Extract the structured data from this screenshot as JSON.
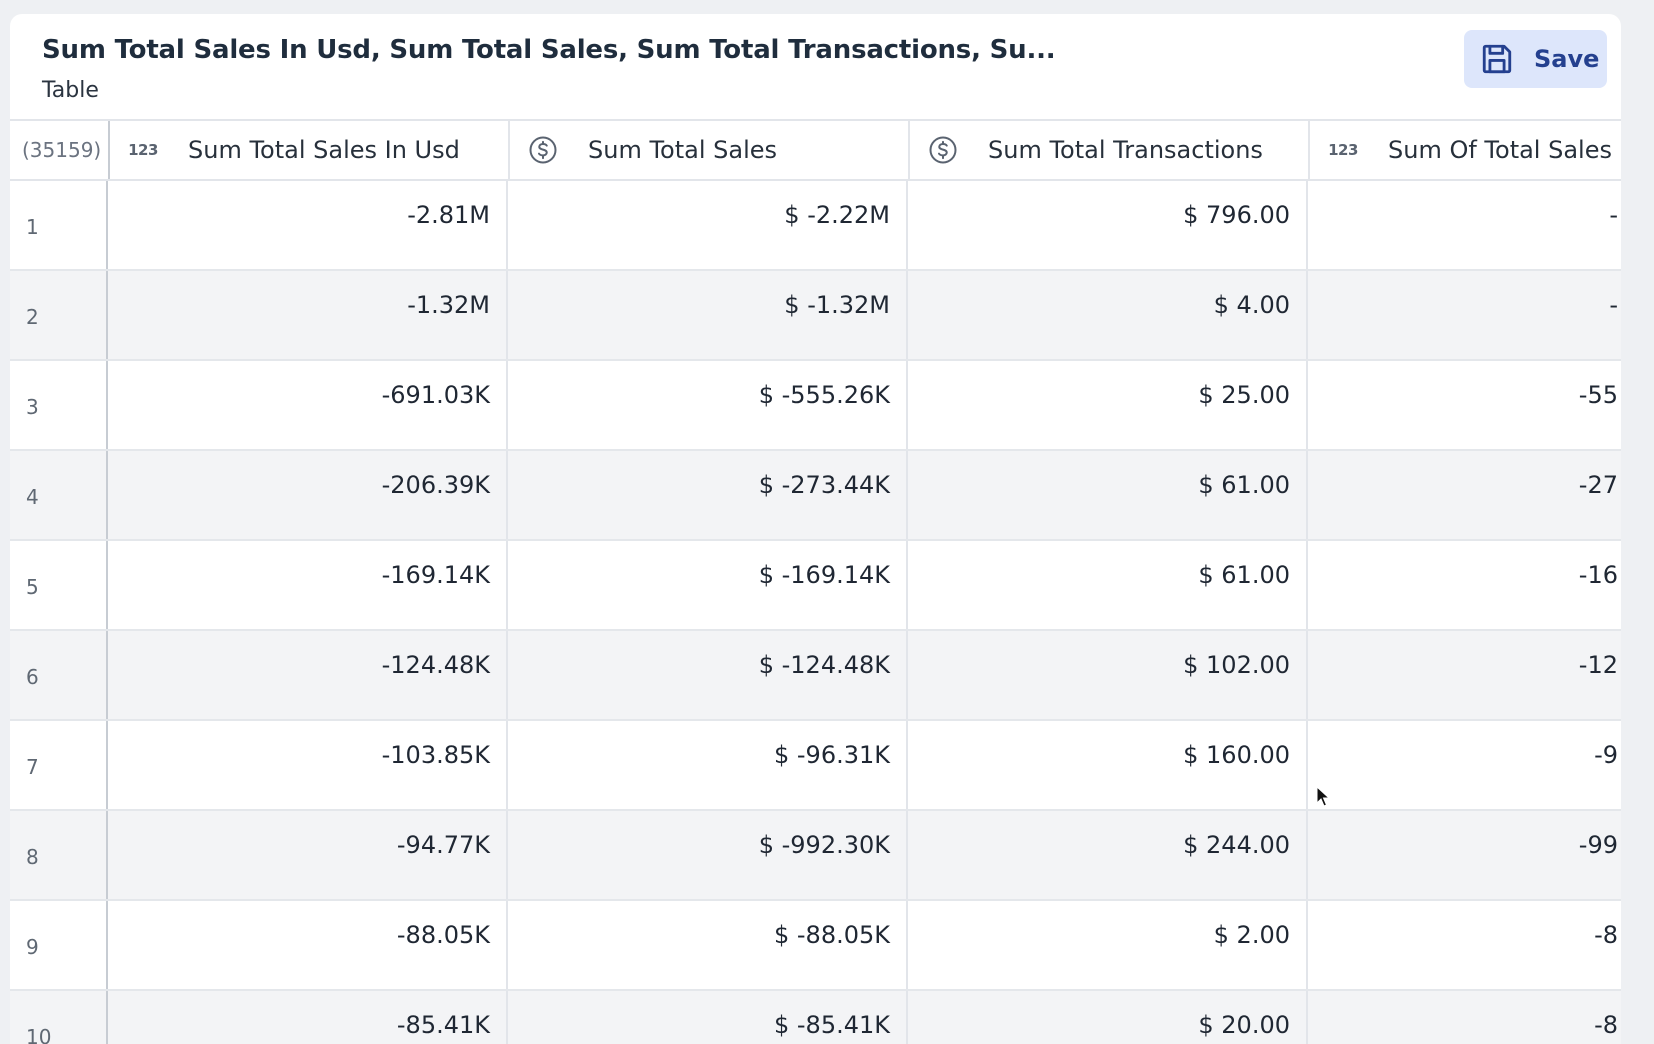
{
  "header": {
    "title": "Sum Total Sales In Usd, Sum Total Sales, Sum Total Transactions, Su...",
    "subtitle": "Table",
    "save_label": "Save"
  },
  "table": {
    "row_count_label": "(35159)",
    "columns": [
      {
        "label": "Sum Total Sales In Usd",
        "type_icon": "number-type-icon",
        "type_text": "123"
      },
      {
        "label": "Sum Total Sales",
        "type_icon": "currency-dollar-icon"
      },
      {
        "label": "Sum Total Transactions",
        "type_icon": "currency-dollar-icon"
      },
      {
        "label": "Sum Of Total Sales",
        "type_icon": "number-type-icon",
        "type_text": "123"
      }
    ],
    "rows": [
      {
        "n": "1",
        "cells": [
          "-2.81M",
          "$ -2.22M",
          "$ 796.00",
          "-"
        ]
      },
      {
        "n": "2",
        "cells": [
          "-1.32M",
          "$ -1.32M",
          "$ 4.00",
          "-"
        ]
      },
      {
        "n": "3",
        "cells": [
          "-691.03K",
          "$ -555.26K",
          "$ 25.00",
          "-55"
        ]
      },
      {
        "n": "4",
        "cells": [
          "-206.39K",
          "$ -273.44K",
          "$ 61.00",
          "-27"
        ]
      },
      {
        "n": "5",
        "cells": [
          "-169.14K",
          "$ -169.14K",
          "$ 61.00",
          "-16"
        ]
      },
      {
        "n": "6",
        "cells": [
          "-124.48K",
          "$ -124.48K",
          "$ 102.00",
          "-12"
        ]
      },
      {
        "n": "7",
        "cells": [
          "-103.85K",
          "$ -96.31K",
          "$ 160.00",
          "-9"
        ]
      },
      {
        "n": "8",
        "cells": [
          "-94.77K",
          "$ -992.30K",
          "$ 244.00",
          "-99"
        ]
      },
      {
        "n": "9",
        "cells": [
          "-88.05K",
          "$ -88.05K",
          "$ 2.00",
          "-8"
        ]
      },
      {
        "n": "10",
        "cells": [
          "-85.41K",
          "$ -85.41K",
          "$ 20.00",
          "-8"
        ]
      }
    ]
  },
  "colors": {
    "accent": "#24408f",
    "save_button_bg": "#dde6fb",
    "row_alt_bg": "#f3f4f6",
    "border": "#e2e5ea"
  }
}
